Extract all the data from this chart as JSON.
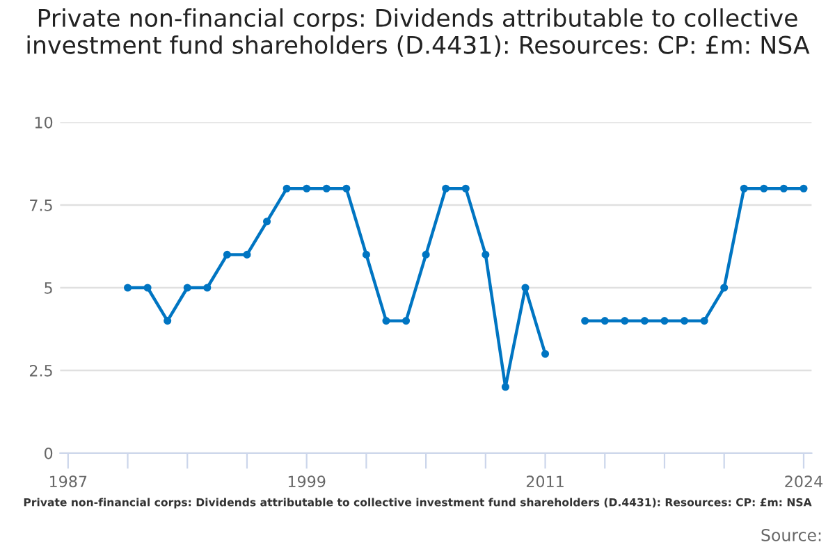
{
  "chart_data": {
    "type": "line",
    "title": "Private non-financial corps: Dividends attributable to collective investment fund shareholders (D.4431): Resources: CP: £m: NSA",
    "x": [
      1990,
      1991,
      1992,
      1993,
      1994,
      1995,
      1996,
      1997,
      1998,
      1999,
      2000,
      2001,
      2002,
      2003,
      2004,
      2005,
      2006,
      2007,
      2008,
      2009,
      2010,
      2011,
      2012,
      2013,
      2014,
      2015,
      2016,
      2017,
      2018,
      2019,
      2020,
      2021,
      2022,
      2023,
      2024
    ],
    "series": [
      {
        "color": "#0075c2",
        "values": [
          5,
          5,
          4,
          5,
          5,
          6,
          6,
          7,
          8,
          8,
          8,
          8,
          6,
          4,
          4,
          6,
          8,
          8,
          6,
          2,
          5,
          3,
          null,
          4,
          4,
          4,
          4,
          4,
          4,
          4,
          5,
          8,
          8,
          8,
          8
        ]
      }
    ],
    "xlim": [
      1986.6,
      2024.4
    ],
    "xticks": [
      1987,
      {
        "value": 1990,
        "label": null
      },
      {
        "value": 1993,
        "label": null
      },
      {
        "value": 1996,
        "label": null
      },
      1999,
      {
        "value": 2002,
        "label": null
      },
      {
        "value": 2005,
        "label": null
      },
      {
        "value": 2008,
        "label": null
      },
      2011,
      {
        "value": 2014,
        "label": null
      },
      {
        "value": 2017,
        "label": null
      },
      {
        "value": 2020,
        "label": null
      },
      2024
    ],
    "ylim": [
      0,
      10
    ],
    "yticks": [
      0,
      2.5,
      5,
      7.5,
      10
    ],
    "grid": "y",
    "marker": "circle",
    "line_style": "solid",
    "legend": false,
    "annotations": [
      "Private non-financial corps: Dividends attributable to collective investment fund shareholders (D.4431): Resources: CP: £m: NSA",
      "Source:"
    ]
  }
}
